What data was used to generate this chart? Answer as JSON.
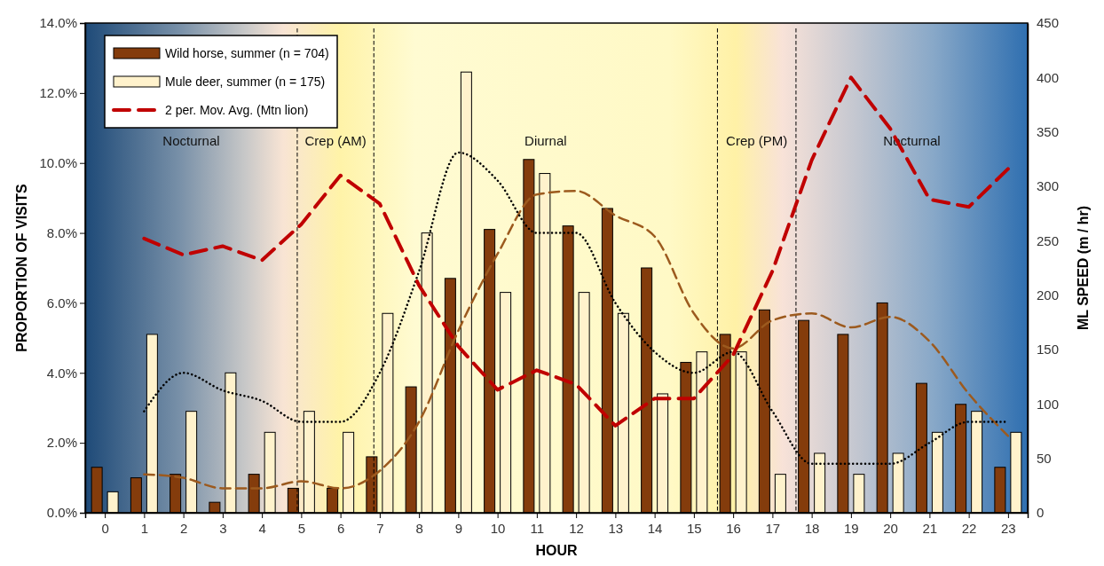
{
  "chart_data": {
    "type": "bar",
    "x": [
      0,
      1,
      2,
      3,
      4,
      5,
      6,
      7,
      8,
      9,
      10,
      11,
      12,
      13,
      14,
      15,
      16,
      17,
      18,
      19,
      20,
      21,
      22,
      23
    ],
    "xlim": [
      -0.5,
      23.5
    ],
    "xticks": [
      0,
      1,
      2,
      3,
      4,
      5,
      6,
      7,
      8,
      9,
      10,
      11,
      12,
      13,
      14,
      15,
      16,
      17,
      18,
      19,
      20,
      21,
      22,
      23
    ],
    "xlabel": "HOUR",
    "ylabel": "PROPORTION OF VISITS",
    "y2label": "ML SPEED (m / hr)",
    "ylim": [
      0,
      14
    ],
    "yticks": [
      {
        "value": 0,
        "label": "0.0%"
      },
      {
        "value": 2,
        "label": "2.0%"
      },
      {
        "value": 4,
        "label": "4.0%"
      },
      {
        "value": 6,
        "label": "6.0%"
      },
      {
        "value": 8,
        "label": "8.0%"
      },
      {
        "value": 10,
        "label": "10.0%"
      },
      {
        "value": 12,
        "label": "12.0%"
      },
      {
        "value": 14,
        "label": "14.0%"
      }
    ],
    "y2lim": [
      0,
      450
    ],
    "y2ticks": [
      0,
      50,
      100,
      150,
      200,
      250,
      300,
      350,
      400,
      450
    ],
    "series": [
      {
        "name": "Wild horse, summer (n = 704)",
        "color": "#843c0c",
        "values": [
          1.3,
          1.0,
          1.1,
          0.3,
          1.1,
          0.7,
          0.7,
          1.6,
          3.6,
          6.7,
          8.1,
          10.1,
          8.2,
          8.7,
          7.0,
          4.3,
          5.1,
          5.8,
          5.5,
          5.1,
          6.0,
          3.7,
          3.1,
          1.3
        ]
      },
      {
        "name": "Mule deer, summer (n = 175)",
        "color": "#fff2cc",
        "values": [
          0.6,
          5.1,
          2.9,
          4.0,
          2.3,
          2.9,
          2.3,
          5.7,
          8.0,
          12.6,
          6.3,
          9.7,
          6.3,
          5.7,
          3.4,
          4.6,
          4.6,
          1.1,
          1.7,
          1.1,
          1.7,
          2.3,
          2.9,
          2.3
        ]
      },
      {
        "type": "line",
        "line_style": "dashed",
        "color": "#9c5a1e",
        "x": [
          1,
          2,
          3,
          4,
          5,
          6,
          7,
          8,
          9,
          10,
          11,
          12,
          13,
          14,
          15,
          16,
          17,
          18,
          19,
          20,
          21,
          22,
          23
        ],
        "values": [
          1.1,
          1.0,
          0.7,
          0.7,
          0.9,
          0.7,
          1.2,
          2.6,
          5.2,
          7.4,
          9.1,
          9.2,
          8.5,
          7.9,
          5.7,
          4.7,
          5.5,
          5.7,
          5.3,
          5.6,
          4.9,
          3.4,
          2.2
        ]
      },
      {
        "type": "line",
        "line_style": "dotted",
        "color": "#000000",
        "x": [
          1,
          2,
          3,
          4,
          5,
          6,
          7,
          8,
          9,
          10,
          11,
          12,
          13,
          14,
          15,
          16,
          17,
          18,
          19,
          20,
          21,
          22,
          23
        ],
        "values": [
          2.9,
          4.0,
          3.5,
          3.2,
          2.6,
          2.6,
          4.0,
          6.9,
          10.3,
          9.5,
          8.0,
          8.0,
          6.0,
          4.6,
          4.0,
          4.6,
          2.9,
          1.4,
          1.4,
          1.4,
          2.0,
          2.6,
          2.6
        ]
      },
      {
        "name": "2 per. Mov. Avg. (Mtn lion)",
        "type": "line",
        "line_style": "dashed",
        "axis": "y2",
        "color": "#c00000",
        "x": [
          1,
          2,
          3,
          4,
          5,
          6,
          7,
          8,
          9,
          10,
          11,
          12,
          13,
          14,
          15,
          16,
          17,
          18,
          19,
          20,
          21,
          22,
          23
        ],
        "values": [
          252,
          237,
          245,
          232,
          265,
          310,
          284,
          209,
          153,
          113,
          131,
          118,
          80,
          105,
          105,
          145,
          222,
          324,
          400,
          353,
          288,
          281,
          316
        ]
      }
    ],
    "ref_lines": [
      {
        "axis": "x",
        "value": 4.9,
        "color": "#000000",
        "line_style": "dashed"
      },
      {
        "axis": "x",
        "value": 6.85,
        "color": "#000000",
        "line_style": "dashed"
      },
      {
        "axis": "x",
        "value": 15.6,
        "color": "#000000",
        "line_style": "dashed"
      },
      {
        "axis": "x",
        "value": 17.6,
        "color": "#000000",
        "line_style": "dashed"
      }
    ],
    "bands": [
      {
        "axis": "x",
        "from": -0.5,
        "to": 4.9,
        "label": "Nocturnal"
      },
      {
        "axis": "x",
        "from": 4.9,
        "to": 6.85,
        "label": "Crep (AM)"
      },
      {
        "axis": "x",
        "from": 6.85,
        "to": 15.6,
        "label": "Diurnal"
      },
      {
        "axis": "x",
        "from": 15.6,
        "to": 17.6,
        "label": "Crep (PM)"
      },
      {
        "axis": "x",
        "from": 17.6,
        "to": 23.5,
        "label": "Nocturnal"
      }
    ],
    "legend": "top left",
    "grid": false,
    "marker": "none"
  }
}
